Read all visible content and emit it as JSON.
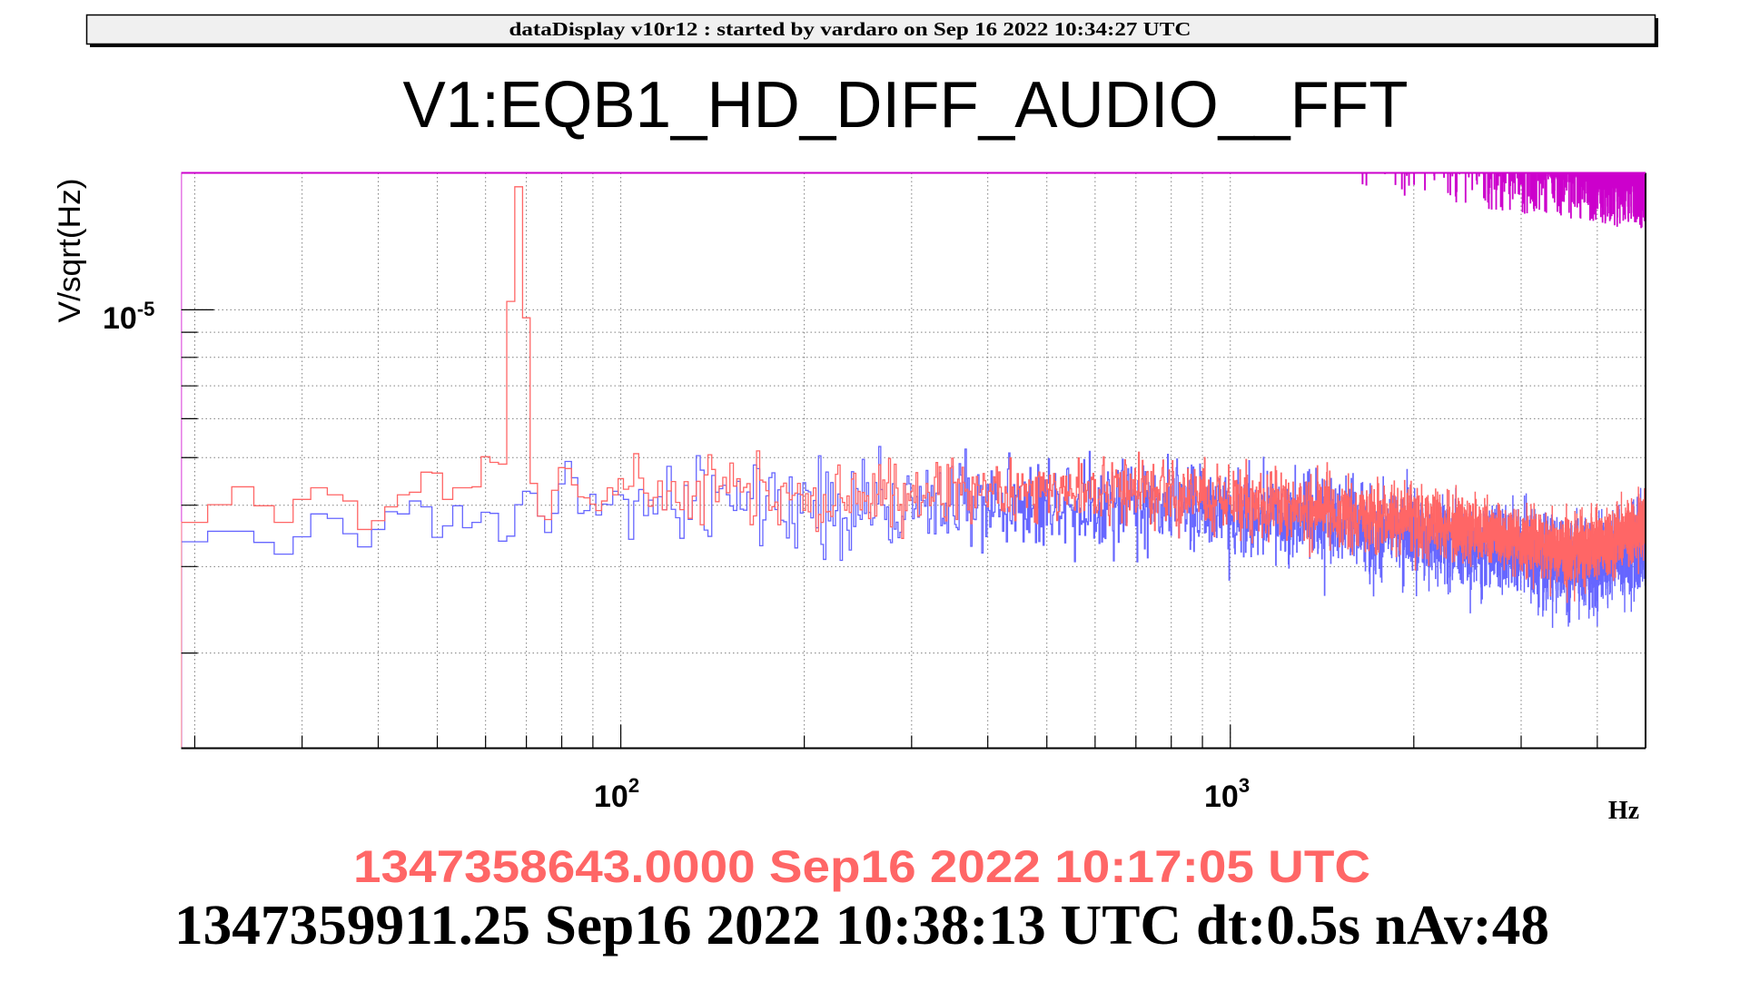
{
  "header": {
    "banner": "dataDisplay v10r12 : started by vardaro on Sep 16 2022 10:34:27 UTC"
  },
  "footer": {
    "reference_time": "1347358643.0000 Sep16 2022 10:17:05 UTC",
    "current_time": "1347359911.25 Sep16 2022 10:38:13 UTC dt:0.5s nAv:48"
  },
  "colors": {
    "reference": "#ff6666",
    "current": "#6666ff",
    "threshold": "#cc00cc",
    "grid": "#808080",
    "reference_text": "#ff6666"
  },
  "chart_data": {
    "type": "line",
    "title": "V1:EQB1_HD_DIFF_AUDIO__FFT",
    "xlabel": "Hz",
    "ylabel": "V/sqrt(Hz)",
    "xscale": "log",
    "yscale": "log",
    "xlim": [
      19,
      4800
    ],
    "ylim": [
      1.28e-06,
      1.9e-05
    ],
    "grid": true,
    "x_tick_labels": [
      {
        "value": 100,
        "base": "10",
        "exp": "2"
      },
      {
        "value": 1000,
        "base": "10",
        "exp": "3"
      }
    ],
    "y_tick_labels": [
      {
        "value": 1e-05,
        "base": "10",
        "exp": "-5"
      }
    ],
    "x_minor_ticks": [
      20,
      30,
      40,
      50,
      60,
      70,
      80,
      90,
      200,
      300,
      400,
      500,
      600,
      700,
      800,
      900,
      2000,
      3000,
      4000
    ],
    "y_minor_ticks": [
      2e-06,
      3e-06,
      4e-06,
      5e-06,
      6e-06,
      7e-06,
      8e-06,
      9e-06
    ],
    "series": [
      {
        "key": "current",
        "color": "#6666ff",
        "bin_width_hz": 2,
        "low_freq_start_hz": 20,
        "low_freq_values": [
          3.37e-06,
          3.54e-06,
          3.54e-06,
          3.36e-06,
          3.18e-06,
          3.45e-06,
          3.84e-06,
          3.76e-06,
          3.5e-06,
          3.29e-06,
          3.57e-06,
          3.88e-06,
          3.84e-06,
          4.08e-06,
          3.97e-06,
          3.44e-06,
          3.63e-06,
          3.99e-06,
          3.6e-06,
          3.69e-06,
          3.87e-06,
          3.85e-06,
          3.38e-06,
          3.46e-06,
          4.01e-06,
          4.27e-06,
          4.23e-06,
          3.8e-06,
          3.52e-06,
          3.85e-06,
          4.42e-06,
          4.91e-06,
          4.55e-06,
          3.85e-06,
          3.9e-06,
          4.21e-06,
          3.82e-06,
          4.02e-06,
          4.01e-06,
          4.27e-06,
          4.2e-06
        ],
        "high_freq_trend": {
          "x": [
            100,
            300,
            700,
            1000,
            1500,
            2000,
            3000,
            3500,
            4000,
            4800
          ],
          "y": [
            4.1e-06,
            4e-06,
            4.1e-06,
            3.9e-06,
            3.7e-06,
            3.5e-06,
            3.2e-06,
            3e-06,
            3.05e-06,
            3.4e-06
          ]
        },
        "noise_log10_sigma": 0.045
      },
      {
        "key": "reference",
        "color": "#ff6666",
        "bin_width_hz": 2,
        "low_freq_start_hz": 20,
        "low_freq_values": [
          3.69e-06,
          4.01e-06,
          4.36e-06,
          3.99e-06,
          3.69e-06,
          4.11e-06,
          4.34e-06,
          4.2e-06,
          4.08e-06,
          3.57e-06,
          3.72e-06,
          3.97e-06,
          4.2e-06,
          4.25e-06,
          4.67e-06,
          4.65e-06,
          4.11e-06,
          4.34e-06,
          4.34e-06,
          4.36e-06,
          5.02e-06,
          4.89e-06,
          4.85e-06,
          1.04e-05,
          1.78e-05,
          9.63e-06,
          4.43e-06,
          3.8e-06,
          3.74e-06,
          4.29e-06,
          4.77e-06,
          4.75e-06,
          4.4e-06,
          4.16e-06,
          4.14e-06,
          4.02e-06,
          3.9e-06,
          4.08e-06,
          4.34e-06,
          4.2e-06,
          4.53e-06
        ],
        "high_freq_trend": {
          "x": [
            100,
            300,
            700,
            1000,
            1500,
            2000,
            3000,
            3500,
            4000,
            4800
          ],
          "y": [
            4.3e-06,
            4.2e-06,
            4.3e-06,
            4.1e-06,
            3.9e-06,
            3.7e-06,
            3.4e-06,
            3.25e-06,
            3.3e-06,
            3.6e-06
          ]
        },
        "noise_log10_sigma": 0.035
      },
      {
        "key": "threshold",
        "color": "#cc00cc",
        "above_ylim": true,
        "dip_region_hz": [
          1630,
          4800
        ],
        "dip_min_value": 1.45e-05
      }
    ]
  }
}
